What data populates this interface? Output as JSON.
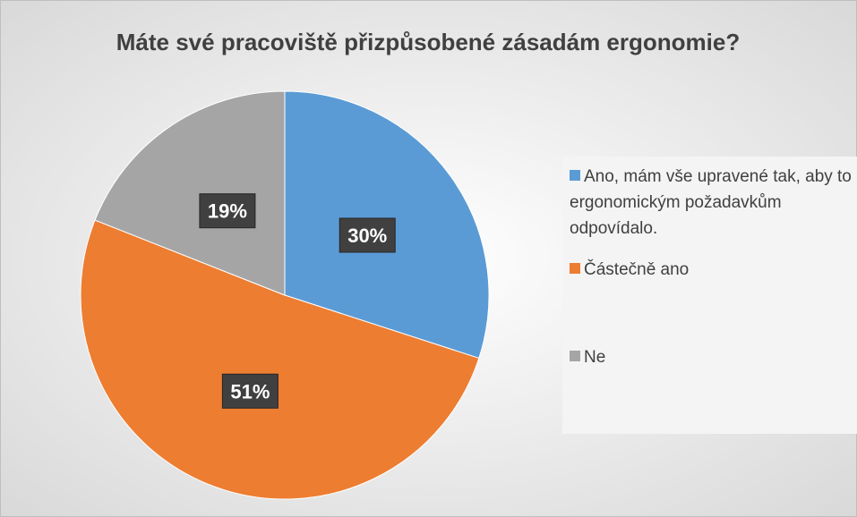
{
  "chart_data": {
    "type": "pie",
    "title": "Máte své pracoviště přizpůsobené zásadám ergonomie?",
    "categories": [
      "Ano, mám vše upravené tak, aby to ergonomickým požadavkům odpovídalo.",
      "Částečně ano",
      "Ne"
    ],
    "values": [
      30,
      51,
      19
    ],
    "value_labels": [
      "30%",
      "51%",
      "19%"
    ],
    "colors": [
      "#5b9bd5",
      "#ed7d31",
      "#a5a5a5"
    ],
    "legend": "right"
  }
}
